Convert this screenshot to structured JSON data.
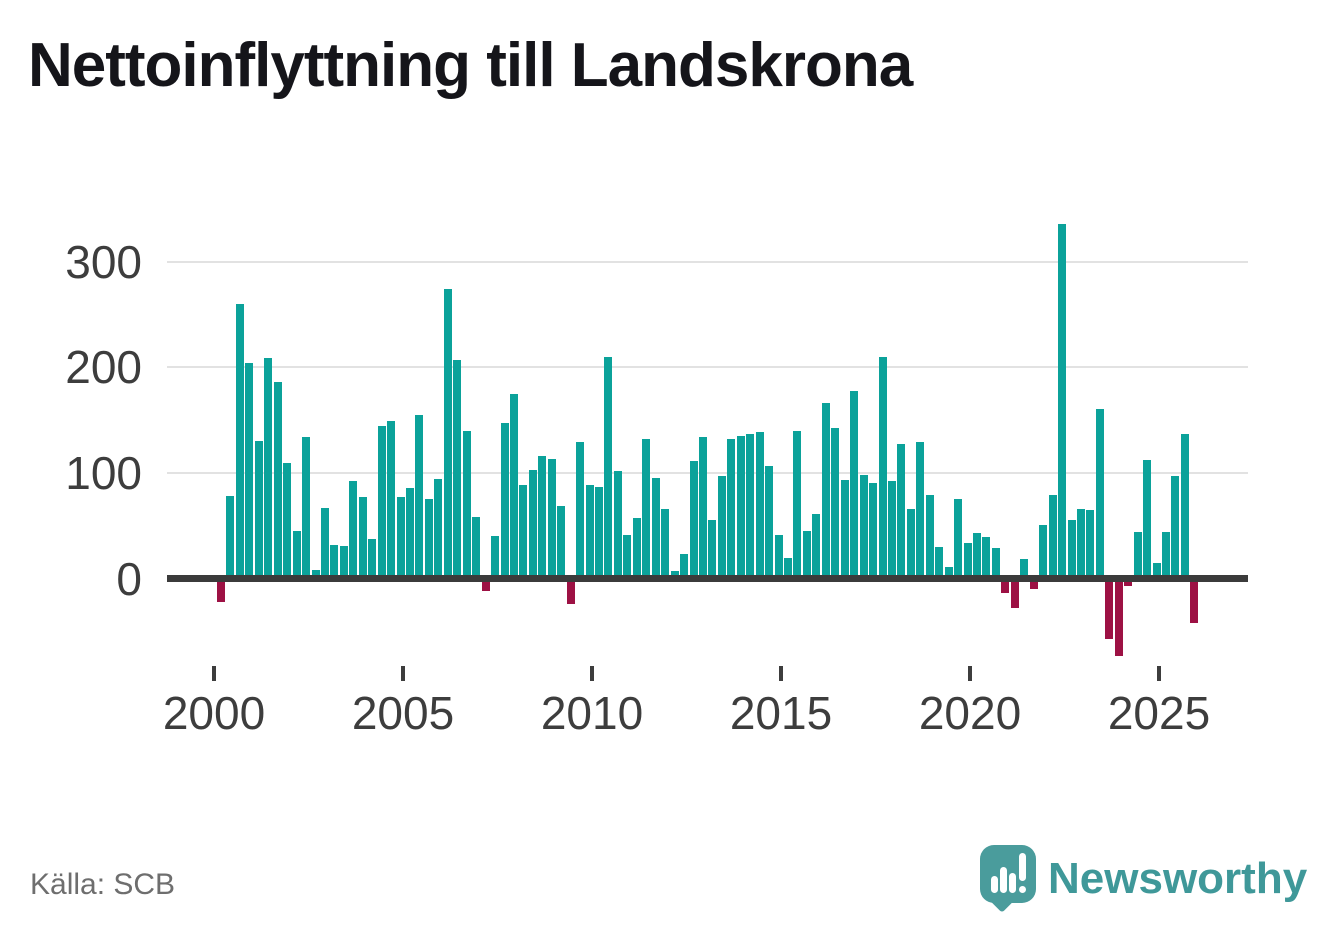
{
  "title": "Nettoinflyttning till Landskrona",
  "source": "Källa: SCB",
  "branding": {
    "name": "Newsworthy"
  },
  "colors": {
    "positive_bar": "#0ba29a",
    "negative_bar": "#9d1144",
    "axis_line": "#3b3b3b",
    "gridline": "#e2e2e2",
    "tick_label": "#3d3d3d",
    "title_text": "#15151a",
    "source_text": "#6e6e6e",
    "brand_teal": "#3f9899"
  },
  "chart_data": {
    "type": "bar",
    "title": "Nettoinflyttning till Landskrona",
    "xlabel": "",
    "ylabel": "",
    "frequency": "quarterly",
    "grid": "horizontal",
    "legend": "none",
    "ylim": [
      -90,
      350
    ],
    "y_ticks": [
      {
        "value": 0,
        "label": "0"
      },
      {
        "value": 100,
        "label": "100"
      },
      {
        "value": 200,
        "label": "200"
      },
      {
        "value": 300,
        "label": "300"
      }
    ],
    "x_ticks": [
      {
        "index": 0,
        "label": "2000"
      },
      {
        "index": 20,
        "label": "2005"
      },
      {
        "index": 40,
        "label": "2010"
      },
      {
        "index": 60,
        "label": "2015"
      },
      {
        "index": 80,
        "label": "2020"
      },
      {
        "index": 100,
        "label": "2025"
      }
    ],
    "x": [
      "2000-Q1",
      "2000-Q2",
      "2000-Q3",
      "2000-Q4",
      "2001-Q1",
      "2001-Q2",
      "2001-Q3",
      "2001-Q4",
      "2002-Q1",
      "2002-Q2",
      "2002-Q3",
      "2002-Q4",
      "2003-Q1",
      "2003-Q2",
      "2003-Q3",
      "2003-Q4",
      "2004-Q1",
      "2004-Q2",
      "2004-Q3",
      "2004-Q4",
      "2005-Q1",
      "2005-Q2",
      "2005-Q3",
      "2005-Q4",
      "2006-Q1",
      "2006-Q2",
      "2006-Q3",
      "2006-Q4",
      "2007-Q1",
      "2007-Q2",
      "2007-Q3",
      "2007-Q4",
      "2008-Q1",
      "2008-Q2",
      "2008-Q3",
      "2008-Q4",
      "2009-Q1",
      "2009-Q2",
      "2009-Q3",
      "2009-Q4",
      "2010-Q1",
      "2010-Q2",
      "2010-Q3",
      "2010-Q4",
      "2011-Q1",
      "2011-Q2",
      "2011-Q3",
      "2011-Q4",
      "2012-Q1",
      "2012-Q2",
      "2012-Q3",
      "2012-Q4",
      "2013-Q1",
      "2013-Q2",
      "2013-Q3",
      "2013-Q4",
      "2014-Q1",
      "2014-Q2",
      "2014-Q3",
      "2014-Q4",
      "2015-Q1",
      "2015-Q2",
      "2015-Q3",
      "2015-Q4",
      "2016-Q1",
      "2016-Q2",
      "2016-Q3",
      "2016-Q4",
      "2017-Q1",
      "2017-Q2",
      "2017-Q3",
      "2017-Q4",
      "2018-Q1",
      "2018-Q2",
      "2018-Q3",
      "2018-Q4",
      "2019-Q1",
      "2019-Q2",
      "2019-Q3",
      "2019-Q4",
      "2020-Q1",
      "2020-Q2",
      "2020-Q3",
      "2020-Q4",
      "2021-Q1",
      "2021-Q2",
      "2021-Q3",
      "2021-Q4",
      "2022-Q1",
      "2022-Q2",
      "2022-Q3",
      "2022-Q4",
      "2023-Q1",
      "2023-Q2",
      "2023-Q3",
      "2023-Q4",
      "2024-Q1",
      "2024-Q2",
      "2024-Q3",
      "2024-Q4",
      "2025-Q1",
      "2025-Q2",
      "2025-Q3",
      "2025-Q4"
    ],
    "values": [
      -22,
      78,
      260,
      204,
      130,
      209,
      186,
      109,
      45,
      134,
      8,
      67,
      32,
      31,
      92,
      77,
      37,
      144,
      149,
      77,
      86,
      155,
      75,
      94,
      274,
      207,
      140,
      58,
      -12,
      40,
      147,
      175,
      89,
      103,
      116,
      113,
      69,
      -24,
      129,
      89,
      87,
      210,
      102,
      41,
      57,
      132,
      95,
      66,
      7,
      23,
      111,
      134,
      55,
      97,
      132,
      135,
      137,
      139,
      107,
      41,
      19,
      140,
      45,
      61,
      166,
      143,
      93,
      178,
      98,
      90,
      210,
      92,
      127,
      66,
      129,
      79,
      30,
      11,
      75,
      34,
      43,
      39,
      29,
      -14,
      -28,
      18,
      -10,
      51,
      79,
      336,
      55,
      66,
      65,
      161,
      -57,
      -73,
      -7,
      44,
      112,
      15,
      44,
      97,
      137,
      -42
    ]
  }
}
